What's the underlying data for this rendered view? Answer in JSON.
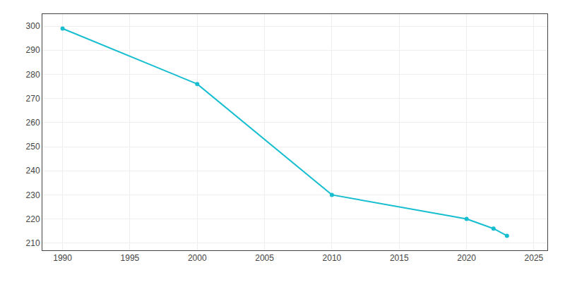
{
  "chart_data": {
    "type": "line",
    "x": [
      1990,
      2000,
      2010,
      2020,
      2022,
      2023
    ],
    "values": [
      299,
      276,
      230,
      220,
      216,
      213
    ],
    "color": "#17becf",
    "marker": "circle",
    "xlim": [
      1988.5,
      2026
    ],
    "xticks": [
      1990,
      1995,
      2000,
      2005,
      2010,
      2015,
      2020,
      2025
    ],
    "ylim": [
      207,
      305
    ],
    "yticks": [
      210,
      220,
      230,
      240,
      250,
      260,
      270,
      280,
      290,
      300
    ],
    "grid": true
  }
}
